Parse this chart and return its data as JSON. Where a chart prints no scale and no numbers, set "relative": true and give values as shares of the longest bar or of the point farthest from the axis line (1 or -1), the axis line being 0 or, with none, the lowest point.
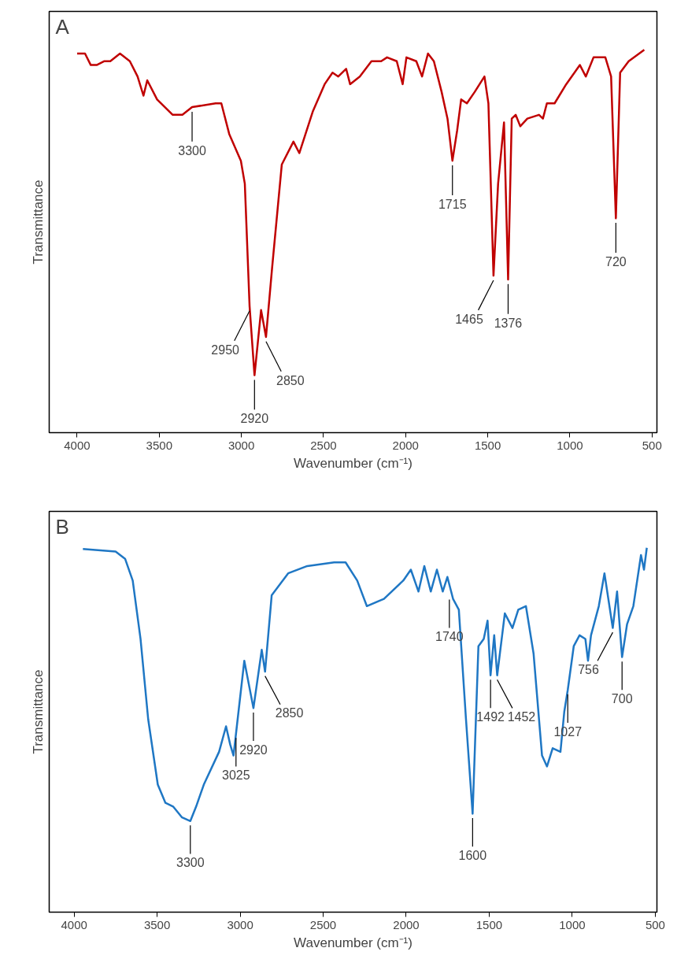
{
  "chart_data": [
    {
      "type": "line",
      "relative": true,
      "xlabel": "Wavenumber (cm⁻¹)",
      "ylabel": "Transmittance",
      "xlim": [
        4170,
        470
      ],
      "xticks": [
        4000,
        3500,
        3000,
        2500,
        2000,
        1500,
        1000,
        500
      ],
      "grid": false,
      "tick_labels": "x",
      "marker": "none",
      "line_style": "solid",
      "series": [
        {
          "color": "#c00000",
          "x": [
            4000,
            3952,
            3917,
            3881,
            3834,
            3798,
            3739,
            3679,
            3632,
            3596,
            3573,
            3513,
            3418,
            3359,
            3300,
            3157,
            3122,
            3074,
            3003,
            2979,
            2950,
            2920,
            2880,
            2850,
            2813,
            2754,
            2683,
            2647,
            2564,
            2493,
            2445,
            2410,
            2362,
            2338,
            2279,
            2208,
            2149,
            2113,
            2054,
            2018,
            1995,
            1935,
            1900,
            1864,
            1828,
            1781,
            1745,
            1715,
            1686,
            1662,
            1627,
            1579,
            1520,
            1496,
            1465,
            1437,
            1401,
            1376,
            1354,
            1330,
            1302,
            1259,
            1188,
            1164,
            1140,
            1093,
            1022,
            939,
            903,
            856,
            784,
            749,
            720,
            694,
            642,
            547
          ],
          "values": [
            0.99,
            0.99,
            0.96,
            0.96,
            0.97,
            0.97,
            0.99,
            0.97,
            0.93,
            0.88,
            0.92,
            0.87,
            0.83,
            0.83,
            0.85,
            0.86,
            0.86,
            0.78,
            0.71,
            0.65,
            0.33,
            0.15,
            0.32,
            0.25,
            0.43,
            0.7,
            0.76,
            0.73,
            0.84,
            0.91,
            0.94,
            0.93,
            0.95,
            0.91,
            0.93,
            0.97,
            0.97,
            0.98,
            0.97,
            0.91,
            0.98,
            0.97,
            0.93,
            0.99,
            0.97,
            0.89,
            0.82,
            0.71,
            0.79,
            0.87,
            0.86,
            0.89,
            0.93,
            0.86,
            0.41,
            0.65,
            0.81,
            0.4,
            0.82,
            0.83,
            0.8,
            0.82,
            0.83,
            0.82,
            0.86,
            0.86,
            0.91,
            0.96,
            0.93,
            0.98,
            0.98,
            0.93,
            0.56,
            0.94,
            0.97,
            1.0
          ]
        }
      ],
      "annotations": [
        "A",
        {
          "text": "3300",
          "x": 3300,
          "y": 0.85
        },
        {
          "text": "2950",
          "x": 2950,
          "y": 0.33
        },
        {
          "text": "2920",
          "x": 2920,
          "y": 0.15
        },
        {
          "text": "2850",
          "x": 2850,
          "y": 0.25
        },
        {
          "text": "1715",
          "x": 1715,
          "y": 0.71
        },
        {
          "text": "1465",
          "x": 1465,
          "y": 0.41
        },
        {
          "text": "1376",
          "x": 1376,
          "y": 0.4
        },
        {
          "text": "720",
          "x": 720,
          "y": 0.56
        }
      ]
    },
    {
      "type": "line",
      "relative": true,
      "xlabel": "Wavenumber (cm⁻¹)",
      "ylabel": "Transmittance",
      "xlim": [
        4150,
        490
      ],
      "xticks": [
        4000,
        3500,
        3000,
        2500,
        2000,
        1500,
        1000,
        500
      ],
      "grid": false,
      "tick_labels": "x",
      "marker": "none",
      "line_style": "solid",
      "series": [
        {
          "color": "#1f77c4",
          "x": [
            3947,
            3750,
            3693,
            3647,
            3600,
            3554,
            3496,
            3450,
            3404,
            3350,
            3300,
            3265,
            3219,
            3127,
            3085,
            3060,
            3040,
            3025,
            2975,
            2920,
            2870,
            2850,
            2810,
            2711,
            2596,
            2434,
            2365,
            2295,
            2237,
            2134,
            2018,
            1972,
            1926,
            1891,
            1852,
            1815,
            1780,
            1752,
            1718,
            1683,
            1640,
            1600,
            1565,
            1533,
            1510,
            1492,
            1470,
            1452,
            1406,
            1360,
            1325,
            1279,
            1233,
            1182,
            1152,
            1118,
            1071,
            1048,
            1027,
            991,
            956,
            921,
            905,
            887,
            840,
            806,
            756,
            730,
            700,
            670,
            632,
            586,
            568,
            551
          ],
          "values": [
            0.997,
            0.99,
            0.97,
            0.91,
            0.75,
            0.53,
            0.35,
            0.3,
            0.29,
            0.26,
            0.25,
            0.29,
            0.35,
            0.44,
            0.51,
            0.46,
            0.43,
            0.49,
            0.69,
            0.56,
            0.72,
            0.66,
            0.87,
            0.93,
            0.95,
            0.96,
            0.96,
            0.91,
            0.84,
            0.86,
            0.91,
            0.94,
            0.88,
            0.95,
            0.88,
            0.94,
            0.88,
            0.92,
            0.86,
            0.83,
            0.53,
            0.27,
            0.73,
            0.75,
            0.8,
            0.65,
            0.76,
            0.65,
            0.82,
            0.78,
            0.83,
            0.84,
            0.71,
            0.43,
            0.4,
            0.45,
            0.44,
            0.55,
            0.61,
            0.73,
            0.76,
            0.75,
            0.69,
            0.76,
            0.84,
            0.93,
            0.78,
            0.88,
            0.7,
            0.79,
            0.84,
            0.98,
            0.94,
            1.0
          ]
        }
      ],
      "annotations": [
        "B",
        {
          "text": "3300",
          "x": 3300,
          "y": 0.25
        },
        {
          "text": "3025",
          "x": 3025,
          "y": 0.49
        },
        {
          "text": "2920",
          "x": 2920,
          "y": 0.56
        },
        {
          "text": "2850",
          "x": 2850,
          "y": 0.66
        },
        {
          "text": "1740",
          "x": 1740,
          "y": 0.87
        },
        {
          "text": "1600",
          "x": 1600,
          "y": 0.27
        },
        {
          "text": "1492",
          "x": 1492,
          "y": 0.65
        },
        {
          "text": "1452",
          "x": 1452,
          "y": 0.65
        },
        {
          "text": "1027",
          "x": 1027,
          "y": 0.61
        },
        {
          "text": "756",
          "x": 756,
          "y": 0.78
        },
        {
          "text": "700",
          "x": 700,
          "y": 0.7
        }
      ]
    }
  ]
}
